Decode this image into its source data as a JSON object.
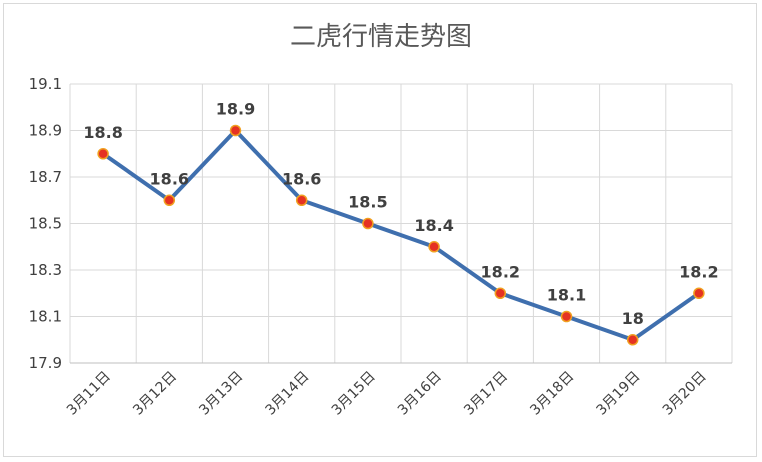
{
  "chart_data": {
    "type": "line",
    "title": "二虎行情走势图",
    "xlabel": "",
    "ylabel": "",
    "categories": [
      "3月11日",
      "3月12日",
      "3月13日",
      "3月14日",
      "3月15日",
      "3月16日",
      "3月17日",
      "3月18日",
      "3月19日",
      "3月20日"
    ],
    "series": [
      {
        "values": [
          18.8,
          18.6,
          18.9,
          18.6,
          18.5,
          18.4,
          18.2,
          18.1,
          18,
          18.2
        ],
        "labels": [
          "18.8",
          "18.6",
          "18.9",
          "18.6",
          "18.5",
          "18.4",
          "18.2",
          "18.1",
          "18",
          "18.2"
        ],
        "line_color": "#3F6FAE",
        "marker_fill": "#E53222",
        "marker_edge": "#F0A020"
      }
    ],
    "ylim": [
      17.9,
      19.1
    ],
    "yticks": [
      17.9,
      18.1,
      18.3,
      18.5,
      18.7,
      18.9,
      19.1
    ],
    "ytick_labels": [
      "17.9",
      "18.1",
      "18.3",
      "18.5",
      "18.7",
      "18.9",
      "19.1"
    ],
    "grid": true,
    "legend": "none"
  }
}
